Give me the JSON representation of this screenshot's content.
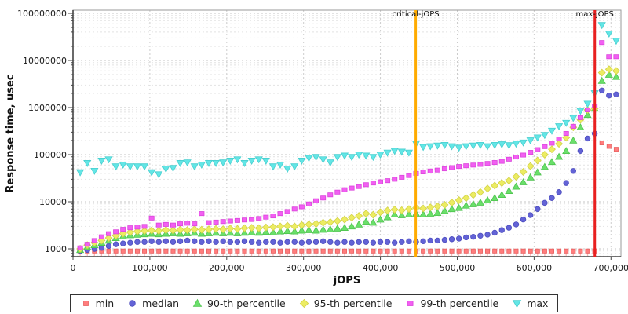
{
  "page": {
    "background": "#ffffff"
  },
  "chart_data": {
    "type": "scatter",
    "title": "",
    "xlabel": "jOPS",
    "ylabel": "Response time, usec",
    "legend_position": "bottom",
    "grid": true,
    "x_axis": {
      "min": 0,
      "max": 713000,
      "ticks": [
        0,
        100000,
        200000,
        300000,
        400000,
        500000,
        600000,
        700000
      ],
      "tick_labels": [
        "0",
        "100,000",
        "200,000",
        "300,000",
        "400,000",
        "500,000",
        "600,000",
        "700,000"
      ]
    },
    "y_axis": {
      "scale": "log",
      "min": 680,
      "max": 116000000,
      "ticks": [
        1000,
        10000,
        100000,
        1000000,
        10000000,
        100000000
      ],
      "tick_labels": [
        "1000",
        "10000",
        "100000",
        "1000000",
        "10000000",
        "100000000"
      ]
    },
    "annotations": [
      {
        "label": "critical-jOPS",
        "x": 446000,
        "color": "#FFAB00"
      },
      {
        "label": "max-jOPS",
        "x": 679000,
        "color": "#E82020"
      }
    ],
    "x": [
      9300,
      18600,
      27900,
      37200,
      46500,
      55800,
      65100,
      74400,
      83700,
      93000,
      102300,
      111600,
      120900,
      130200,
      139500,
      148800,
      158100,
      167400,
      176700,
      186000,
      195300,
      204600,
      213900,
      223200,
      232500,
      241800,
      251100,
      260400,
      269700,
      279000,
      288300,
      297600,
      306900,
      316200,
      325500,
      334800,
      344100,
      353400,
      362700,
      372000,
      381300,
      390600,
      399900,
      409200,
      418500,
      427800,
      437100,
      446400,
      455700,
      465000,
      474300,
      483600,
      492900,
      502200,
      511500,
      520800,
      530100,
      539400,
      548700,
      558000,
      567300,
      576600,
      585900,
      595200,
      604500,
      613800,
      623100,
      632400,
      641700,
      651000,
      660300,
      669600,
      678900,
      688200,
      697500,
      706800
    ],
    "series": [
      {
        "name": "min",
        "marker": "square-stem",
        "color": "#FF7D7D",
        "stroke": "#E86060",
        "values": [
          900,
          900,
          900,
          900,
          900,
          900,
          900,
          900,
          900,
          900,
          900,
          900,
          900,
          900,
          900,
          900,
          900,
          900,
          900,
          900,
          900,
          900,
          900,
          900,
          900,
          900,
          900,
          900,
          900,
          900,
          900,
          900,
          900,
          900,
          900,
          900,
          900,
          900,
          900,
          900,
          900,
          900,
          900,
          900,
          900,
          900,
          900,
          900,
          900,
          900,
          900,
          900,
          900,
          900,
          900,
          900,
          900,
          900,
          900,
          900,
          900,
          900,
          900,
          900,
          900,
          900,
          900,
          900,
          900,
          900,
          900,
          900,
          900,
          178000,
          150000,
          130000
        ]
      },
      {
        "name": "median",
        "marker": "circle",
        "color": "#6363D6",
        "stroke": "#4C4CBE",
        "values": [
          900,
          950,
          1000,
          1050,
          1150,
          1250,
          1300,
          1350,
          1400,
          1400,
          1450,
          1400,
          1450,
          1400,
          1450,
          1500,
          1450,
          1400,
          1450,
          1400,
          1450,
          1400,
          1400,
          1450,
          1400,
          1350,
          1400,
          1400,
          1350,
          1400,
          1400,
          1350,
          1400,
          1400,
          1450,
          1400,
          1350,
          1400,
          1350,
          1400,
          1400,
          1350,
          1400,
          1400,
          1350,
          1400,
          1450,
          1400,
          1450,
          1500,
          1500,
          1550,
          1600,
          1650,
          1750,
          1800,
          1900,
          2000,
          2200,
          2500,
          2800,
          3300,
          4200,
          5200,
          7000,
          9500,
          12000,
          16000,
          25000,
          45000,
          120000,
          220000,
          280000,
          2300000,
          1800000,
          1900000
        ]
      },
      {
        "name": "90-th percentile",
        "marker": "triangle-up",
        "color": "#6ADF6A",
        "stroke": "#4EC44E",
        "values": [
          950,
          1100,
          1200,
          1350,
          1500,
          1700,
          1850,
          1950,
          2000,
          2050,
          2100,
          2050,
          2100,
          2150,
          2100,
          2150,
          2200,
          2100,
          2150,
          2200,
          2150,
          2200,
          2150,
          2200,
          2250,
          2200,
          2300,
          2250,
          2350,
          2400,
          2350,
          2450,
          2500,
          2450,
          2550,
          2600,
          2700,
          2800,
          3000,
          3300,
          3800,
          3600,
          4200,
          4700,
          5400,
          5200,
          5400,
          5600,
          5400,
          5600,
          5800,
          6400,
          7000,
          7400,
          8300,
          8900,
          9600,
          10800,
          12000,
          14000,
          17000,
          21000,
          26000,
          33000,
          42000,
          55000,
          70000,
          90000,
          120000,
          200000,
          380000,
          700000,
          950000,
          3700000,
          5000000,
          4500000
        ]
      },
      {
        "name": "95-th percentile",
        "marker": "diamond",
        "color": "#ECEC62",
        "stroke": "#D2D246",
        "values": [
          1000,
          1200,
          1350,
          1500,
          1700,
          1900,
          2100,
          2250,
          2350,
          2400,
          2450,
          2400,
          2500,
          2450,
          2550,
          2500,
          2600,
          2550,
          2600,
          2650,
          2600,
          2700,
          2650,
          2750,
          2800,
          2750,
          2850,
          2900,
          3000,
          3100,
          3000,
          3200,
          3300,
          3400,
          3600,
          3700,
          3900,
          4200,
          4600,
          5000,
          5600,
          5300,
          6000,
          6500,
          6800,
          6600,
          7000,
          7400,
          7200,
          7600,
          8000,
          8600,
          9600,
          10800,
          12000,
          14000,
          16000,
          19000,
          22000,
          25000,
          28000,
          34000,
          43000,
          57000,
          75000,
          100000,
          130000,
          170000,
          230000,
          380000,
          550000,
          890000,
          960000,
          5500000,
          6500000,
          6000000
        ]
      },
      {
        "name": "99-th percentile",
        "marker": "square",
        "color": "#F25FF2",
        "stroke": "#DB45DB",
        "values": [
          1050,
          1250,
          1500,
          1800,
          2100,
          2300,
          2600,
          2800,
          2900,
          3000,
          4500,
          3200,
          3300,
          3200,
          3400,
          3500,
          3400,
          5600,
          3600,
          3700,
          3800,
          3900,
          4000,
          4100,
          4200,
          4400,
          4700,
          5000,
          5600,
          6200,
          7000,
          7800,
          9000,
          10500,
          12000,
          14000,
          16000,
          18000,
          19500,
          21000,
          23000,
          25000,
          26500,
          28000,
          30000,
          33000,
          36000,
          40000,
          43000,
          45000,
          47000,
          50000,
          53000,
          56000,
          58000,
          60000,
          62000,
          65000,
          68000,
          72000,
          80000,
          89000,
          98000,
          112000,
          128000,
          148000,
          175000,
          215000,
          282000,
          400000,
          610000,
          890000,
          1080000,
          24000000,
          12000000,
          12000000
        ]
      },
      {
        "name": "max",
        "marker": "triangle-down",
        "color": "#63E6E6",
        "stroke": "#48CFCF",
        "values": [
          42000,
          66000,
          45000,
          74000,
          79000,
          56000,
          61000,
          56000,
          56000,
          56000,
          42000,
          38000,
          50000,
          52000,
          66000,
          68000,
          56000,
          61000,
          66000,
          66000,
          68000,
          74000,
          79000,
          66000,
          74000,
          79000,
          74000,
          56000,
          61000,
          50000,
          56000,
          74000,
          85000,
          89000,
          79000,
          68000,
          89000,
          95000,
          89000,
          100000,
          95000,
          89000,
          100000,
          110000,
          120000,
          115000,
          110000,
          170000,
          145000,
          150000,
          155000,
          160000,
          150000,
          140000,
          150000,
          155000,
          160000,
          150000,
          160000,
          165000,
          158000,
          170000,
          180000,
          200000,
          230000,
          260000,
          320000,
          400000,
          470000,
          600000,
          850000,
          1200000,
          2000000,
          56000000,
          37000000,
          26000000
        ]
      }
    ]
  }
}
